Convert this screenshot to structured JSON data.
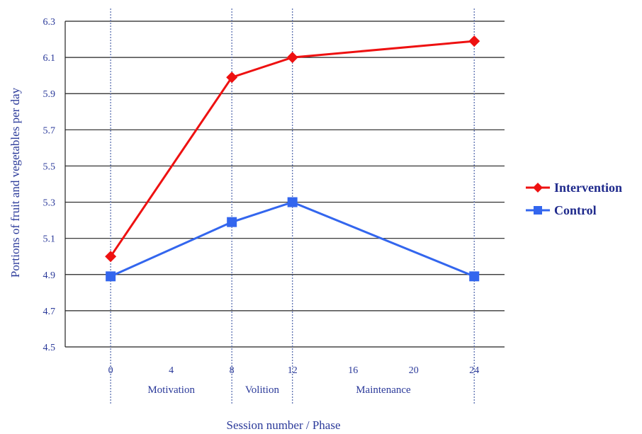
{
  "chart_data": {
    "type": "line",
    "title": "",
    "xlabel": "Session number / Phase",
    "ylabel": "Portions of fruit and vegetables per day",
    "xlim": [
      -3,
      26
    ],
    "ylim": [
      4.5,
      6.3
    ],
    "x_ticks": [
      "0",
      "4",
      "8",
      "12",
      "16",
      "20",
      "24"
    ],
    "x_tick_values": [
      0,
      4,
      8,
      12,
      16,
      20,
      24
    ],
    "y_ticks": [
      "4.5",
      "4.7",
      "4.9",
      "5.1",
      "5.3",
      "5.5",
      "5.7",
      "5.9",
      "6.1",
      "6.3"
    ],
    "y_tick_values": [
      4.5,
      4.7,
      4.9,
      5.1,
      5.3,
      5.5,
      5.7,
      5.9,
      6.1,
      6.3
    ],
    "phase_lines_x": [
      0,
      8,
      12,
      24
    ],
    "phases": [
      {
        "label": "Motivation",
        "x": 4
      },
      {
        "label": "Volition",
        "x": 10
      },
      {
        "label": "Maintenance",
        "x": 18
      }
    ],
    "grid": {
      "horizontal": true,
      "vertical": false
    },
    "legend_position": "right",
    "series": [
      {
        "name": "Intervention",
        "color": "#ee1111",
        "marker": "diamond",
        "x": [
          0,
          8,
          12,
          24
        ],
        "y": [
          5.0,
          5.99,
          6.1,
          6.19
        ]
      },
      {
        "name": "Control",
        "color": "#3366ee",
        "marker": "square",
        "x": [
          0,
          8,
          12,
          24
        ],
        "y": [
          4.89,
          5.19,
          5.3,
          4.89
        ]
      }
    ]
  }
}
